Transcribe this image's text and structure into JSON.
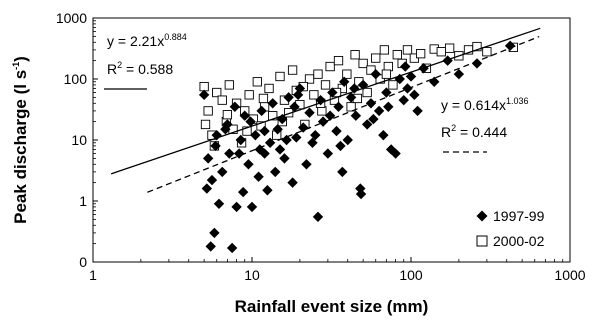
{
  "chart_data": {
    "type": "scatter",
    "xlabel": "Rainfall event size (mm)",
    "xlabel_parts": {
      "main": "Rainfall event size (mm)"
    },
    "ylabel_parts": {
      "pre": "Peak discharge (l s",
      "sup": "-1",
      "post": ")"
    },
    "x_scale": "log",
    "y_scale": "log",
    "xlim": [
      1,
      1000
    ],
    "ylim": [
      0.1,
      1000
    ],
    "x_ticks": [
      1,
      10,
      100,
      1000
    ],
    "x_tick_labels": [
      "1",
      "10",
      "100",
      "1000"
    ],
    "y_ticks": [
      0.1,
      1,
      10,
      100,
      1000
    ],
    "y_tick_labels": [
      "0",
      "1",
      "10",
      "100",
      "1000"
    ],
    "grid": false,
    "legend_position": "bottom-right",
    "series": [
      {
        "name": "1997-99",
        "marker": "diamond-filled",
        "color": "#000000",
        "points": [
          [
            5,
            55
          ],
          [
            5.2,
            1.6
          ],
          [
            5.5,
            0.18
          ],
          [
            5.8,
            0.3
          ],
          [
            5.3,
            5
          ],
          [
            5.6,
            2.2
          ],
          [
            5.9,
            8
          ],
          [
            6,
            12
          ],
          [
            6.2,
            0.9
          ],
          [
            6.5,
            3
          ],
          [
            7,
            18
          ],
          [
            7.5,
            0.17
          ],
          [
            8,
            0.8
          ],
          [
            8.3,
            6
          ],
          [
            8.8,
            1.4
          ],
          [
            9,
            25
          ],
          [
            9.5,
            4
          ],
          [
            10,
            0.8
          ],
          [
            10.5,
            12
          ],
          [
            11,
            2.5
          ],
          [
            11.5,
            30
          ],
          [
            12,
            6
          ],
          [
            12.5,
            1.5
          ],
          [
            13,
            9
          ],
          [
            13.5,
            40
          ],
          [
            14,
            3
          ],
          [
            14.5,
            15
          ],
          [
            15,
            7
          ],
          [
            15.5,
            22
          ],
          [
            16,
            5
          ],
          [
            17,
            50
          ],
          [
            18,
            2
          ],
          [
            18.5,
            35
          ],
          [
            19,
            11
          ],
          [
            20,
            70
          ],
          [
            21,
            16
          ],
          [
            22,
            4
          ],
          [
            23,
            28
          ],
          [
            24,
            9
          ],
          [
            26,
            0.55
          ],
          [
            27,
            45
          ],
          [
            28,
            20
          ],
          [
            30,
            6
          ],
          [
            32,
            60
          ],
          [
            34,
            14
          ],
          [
            35,
            35
          ],
          [
            37,
            3
          ],
          [
            38,
            90
          ],
          [
            40,
            10
          ],
          [
            42,
            50
          ],
          [
            45,
            25
          ],
          [
            48,
            1.6
          ],
          [
            48.5,
            1.3
          ],
          [
            50,
            80
          ],
          [
            53,
            18
          ],
          [
            56,
            40
          ],
          [
            60,
            120
          ],
          [
            63,
            30
          ],
          [
            67,
            12
          ],
          [
            70,
            60
          ],
          [
            75,
            7
          ],
          [
            80,
            6
          ],
          [
            85,
            100
          ],
          [
            90,
            45
          ],
          [
            95,
            70
          ],
          [
            100,
            110
          ],
          [
            110,
            30
          ],
          [
            120,
            150
          ],
          [
            140,
            90
          ],
          [
            170,
            200
          ],
          [
            200,
            120
          ],
          [
            260,
            180
          ],
          [
            420,
            350
          ],
          [
            6.8,
            15
          ],
          [
            7.8,
            35
          ],
          [
            9.8,
            20
          ],
          [
            12,
            14
          ],
          [
            16.5,
            10
          ],
          [
            19.5,
            55
          ],
          [
            25,
            12
          ],
          [
            31,
            25
          ],
          [
            36,
            8
          ],
          [
            44,
            70
          ],
          [
            58,
            22
          ],
          [
            72,
            35
          ],
          [
            92,
            160
          ],
          [
            105,
            55
          ],
          [
            7.2,
            6
          ],
          [
            8.5,
            10
          ],
          [
            11.2,
            7
          ]
        ]
      },
      {
        "name": "2000-02",
        "marker": "square-open",
        "color": "#000000",
        "points": [
          [
            5,
            75
          ],
          [
            5.3,
            30
          ],
          [
            5.6,
            12
          ],
          [
            6,
            60
          ],
          [
            6.5,
            45
          ],
          [
            6.9,
            20
          ],
          [
            7.2,
            80
          ],
          [
            7.6,
            15
          ],
          [
            8,
            40
          ],
          [
            8.6,
            9
          ],
          [
            9,
            30
          ],
          [
            9.6,
            55
          ],
          [
            10.2,
            22
          ],
          [
            10.8,
            90
          ],
          [
            11.4,
            17
          ],
          [
            12,
            35
          ],
          [
            12.8,
            70
          ],
          [
            13.5,
            25
          ],
          [
            14.3,
            12
          ],
          [
            15,
            110
          ],
          [
            16,
            45
          ],
          [
            17,
            28
          ],
          [
            18,
            140
          ],
          [
            19,
            65
          ],
          [
            20,
            38
          ],
          [
            21.5,
            18
          ],
          [
            23,
            100
          ],
          [
            24.5,
            55
          ],
          [
            26,
            120
          ],
          [
            27.5,
            30
          ],
          [
            29,
            80
          ],
          [
            31,
            160
          ],
          [
            33,
            45
          ],
          [
            35,
            200
          ],
          [
            37,
            70
          ],
          [
            39.5,
            120
          ],
          [
            42,
            35
          ],
          [
            44.5,
            250
          ],
          [
            47,
            90
          ],
          [
            50,
            180
          ],
          [
            53,
            60
          ],
          [
            56,
            140
          ],
          [
            60,
            220
          ],
          [
            64,
            100
          ],
          [
            68,
            300
          ],
          [
            72,
            160
          ],
          [
            77,
            80
          ],
          [
            82,
            250
          ],
          [
            88,
            180
          ],
          [
            95,
            300
          ],
          [
            105,
            220
          ],
          [
            115,
            260
          ],
          [
            125,
            150
          ],
          [
            140,
            310
          ],
          [
            155,
            280
          ],
          [
            175,
            320
          ],
          [
            200,
            240
          ],
          [
            230,
            300
          ],
          [
            260,
            340
          ],
          [
            300,
            280
          ],
          [
            440,
            330
          ],
          [
            5.1,
            18
          ],
          [
            5.8,
            8
          ],
          [
            7,
            26
          ],
          [
            9.3,
            14
          ],
          [
            11.8,
            48
          ],
          [
            15.5,
            20
          ],
          [
            21,
            75
          ],
          [
            27,
            40
          ],
          [
            34,
            60
          ],
          [
            46,
            48
          ],
          [
            70,
            120
          ]
        ]
      }
    ],
    "fits": [
      {
        "series": "2000-02",
        "equation_prefix": "y = 2.21x",
        "exponent": "0.884",
        "r2_prefix": "R",
        "r2_sup": "2",
        "r2_value": " = 0.588",
        "a": 2.21,
        "b": 0.884,
        "line_style": "solid",
        "x_range": [
          1.3,
          650
        ]
      },
      {
        "series": "1997-99",
        "equation_prefix": "y = 0.614x",
        "exponent": "1.036",
        "r2_prefix": "R",
        "r2_sup": "2",
        "r2_value": " = 0.444",
        "a": 0.614,
        "b": 1.036,
        "line_style": "dashed",
        "x_range": [
          2.2,
          640
        ]
      }
    ]
  }
}
